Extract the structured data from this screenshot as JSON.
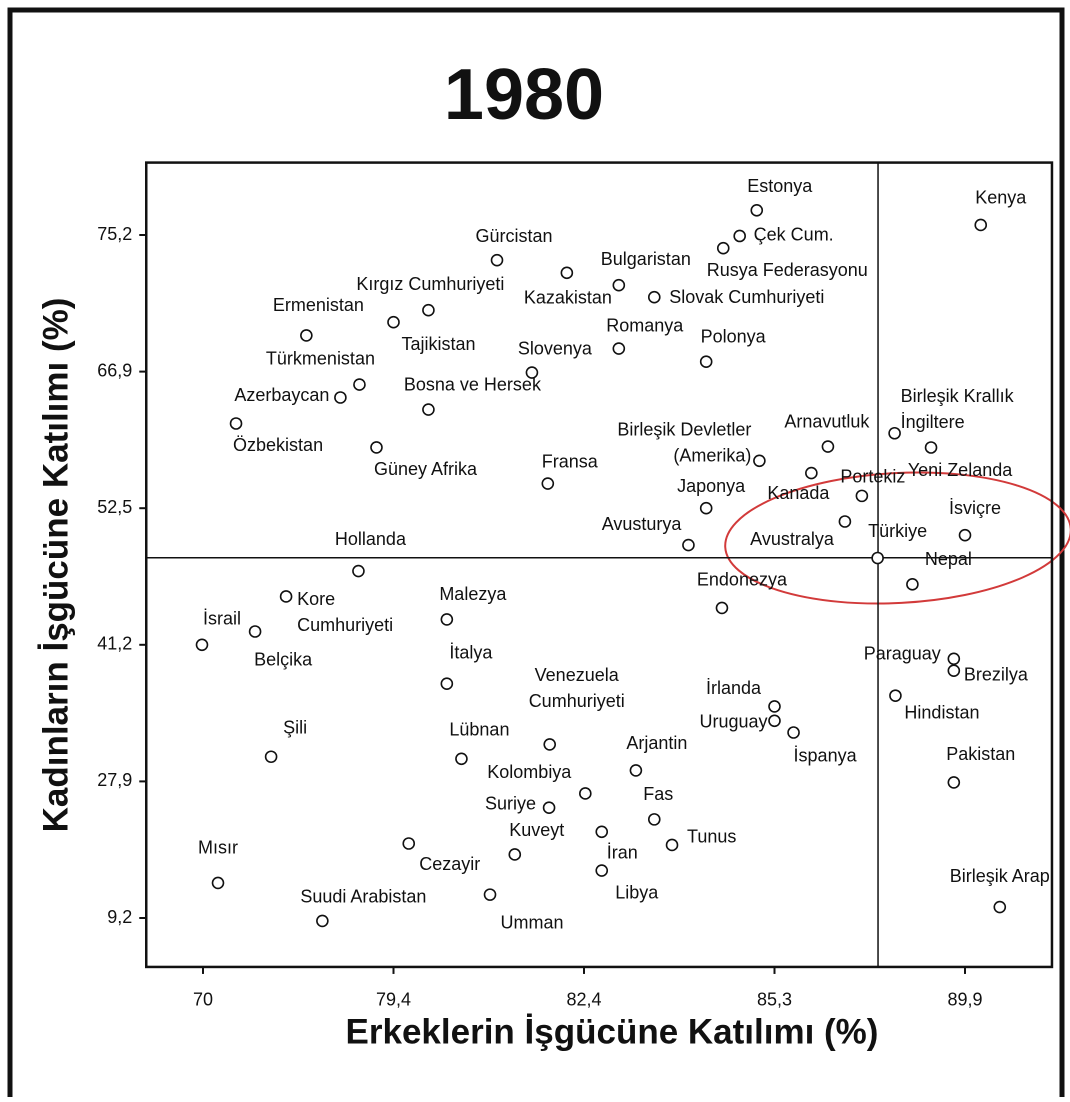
{
  "chart_data": {
    "type": "scatter",
    "title": "1980",
    "x_label": "Erkeklerin İşgücüne Katılımı (%)",
    "y_label": "Kadınların İşgücüne Katılımı (%)",
    "xscale": "piecewise",
    "yscale": "piecewise",
    "xlim": [
      67.2,
      92.0
    ],
    "ylim": [
      2.5,
      79.6
    ],
    "xticks": [
      70,
      {
        "value": 79.4,
        "label": "79,4"
      },
      {
        "value": 82.4,
        "label": "82,4"
      },
      {
        "value": 85.3,
        "label": "85,3"
      },
      {
        "value": 89.9,
        "label": "89,9"
      }
    ],
    "yticks": [
      {
        "value": 9.2,
        "label": "9,2"
      },
      {
        "value": 27.9,
        "label": "27,9"
      },
      {
        "value": 41.2,
        "label": "41,2"
      },
      {
        "value": 52.5,
        "label": "52,5"
      },
      {
        "value": 66.9,
        "label": "66,9"
      },
      {
        "value": 75.2,
        "label": "75,2"
      }
    ],
    "reference_lines": {
      "x": 87.8,
      "y": 48.4
    },
    "color": "#111111",
    "points": [
      {
        "label": "Estonya",
        "x": 85.03,
        "y": 76.7
      },
      {
        "label": "Çek Cum.",
        "x": 84.77,
        "y": 75.14
      },
      {
        "label": "Rusya Federasyonu",
        "x": 84.52,
        "y": 74.4
      },
      {
        "label": "Kenya",
        "x": 90.28,
        "y": 75.81
      },
      {
        "label": "Gürcistan",
        "x": 81.03,
        "y": 73.67
      },
      {
        "label": "Bulgaristan",
        "x": 82.93,
        "y": 72.15
      },
      {
        "label": "Kazakistan",
        "x": 82.13,
        "y": 72.9
      },
      {
        "label": "Slovak Cumhuriyeti",
        "x": 83.47,
        "y": 71.42
      },
      {
        "label": "Kırgız Cumhuriyeti",
        "x": 79.95,
        "y": 70.63
      },
      {
        "label": "Tajikistan",
        "x": 79.4,
        "y": 69.9
      },
      {
        "label": "Ermenistan",
        "x": 75.1,
        "y": 69.1
      },
      {
        "label": "Romanya",
        "x": 82.93,
        "y": 68.3
      },
      {
        "label": "Polonya",
        "x": 84.26,
        "y": 67.5
      },
      {
        "label": "Slovenya",
        "x": 81.58,
        "y": 66.8
      },
      {
        "label": "Türkmenistan",
        "x": 77.72,
        "y": 65.53
      },
      {
        "label": "Azerbaycan",
        "x": 76.78,
        "y": 64.17
      },
      {
        "label": "Bosna ve Hersek",
        "x": 79.95,
        "y": 62.9
      },
      {
        "label": "Özbekistan",
        "x": 71.63,
        "y": 61.43
      },
      {
        "label": "Güney Afrika",
        "x": 78.56,
        "y": 58.91
      },
      {
        "label": [
          "Birleşik Devletler",
          "(Amerika)"
        ],
        "x": 85.07,
        "y": 57.5
      },
      {
        "label": "Arnavutluk",
        "x": 86.59,
        "y": 59.0
      },
      {
        "label": [
          "Birleşik Krallık",
          "İngiltere"
        ],
        "x": 88.2,
        "y": 60.4
      },
      {
        "label": "Yeni Zelanda",
        "x": 89.08,
        "y": 58.9
      },
      {
        "label": "Kanada",
        "x": 86.19,
        "y": 56.2
      },
      {
        "label": "Portekiz",
        "x": 87.41,
        "y": 53.8
      },
      {
        "label": "Fransa",
        "x": 81.83,
        "y": 55.1
      },
      {
        "label": "Japonya",
        "x": 84.26,
        "y": 52.5
      },
      {
        "label": "Avustralya",
        "x": 87.0,
        "y": 51.4
      },
      {
        "label": "İsviçre",
        "x": 89.9,
        "y": 50.27
      },
      {
        "label": "Avusturya",
        "x": 83.99,
        "y": 49.45
      },
      {
        "label": "Türkiye",
        "x": 87.79,
        "y": 48.38
      },
      {
        "label": "Nepal",
        "x": 88.63,
        "y": 46.2
      },
      {
        "label": "Hollanda",
        "x": 77.67,
        "y": 47.3
      },
      {
        "label": "Endonezya",
        "x": 84.5,
        "y": 44.25
      },
      {
        "label": [
          "Kore",
          "Cumhuriyeti"
        ],
        "x": 74.1,
        "y": 45.2
      },
      {
        "label": "Malezya",
        "x": 80.24,
        "y": 43.3
      },
      {
        "label": "İsrail",
        "x": 69.95,
        "y": 41.2
      },
      {
        "label": "Belçika",
        "x": 72.57,
        "y": 42.3
      },
      {
        "label": "İtalya",
        "x": 80.24,
        "y": 37.41
      },
      {
        "label": "Paraguay",
        "x": 89.63,
        "y": 39.84
      },
      {
        "label": "Brezilya",
        "x": 89.63,
        "y": 38.68
      },
      {
        "label": "Hindistan",
        "x": 88.22,
        "y": 36.25
      },
      {
        "label": [
          "Venezuela",
          "Cumhuriyeti"
        ],
        "x": 81.86,
        "y": 31.5
      },
      {
        "label": "İrlanda",
        "x": 85.3,
        "y": 35.2
      },
      {
        "label": "Uruguay",
        "x": 85.3,
        "y": 33.8
      },
      {
        "label": "İspanya",
        "x": 85.76,
        "y": 32.66
      },
      {
        "label": "Şili",
        "x": 73.36,
        "y": 30.3
      },
      {
        "label": "Lübnan",
        "x": 80.47,
        "y": 30.1
      },
      {
        "label": "Arjantin",
        "x": 83.19,
        "y": 28.97
      },
      {
        "label": "Pakistan",
        "x": 89.63,
        "y": 27.76
      },
      {
        "label": "Kolombiya",
        "x": 82.42,
        "y": 26.25
      },
      {
        "label": "Suriye",
        "x": 81.85,
        "y": 24.3
      },
      {
        "label": "Fas",
        "x": 83.47,
        "y": 22.7
      },
      {
        "label": "İran",
        "x": 82.67,
        "y": 21.0
      },
      {
        "label": "Tunus",
        "x": 83.74,
        "y": 19.2
      },
      {
        "label": "Kuveyt",
        "x": 81.31,
        "y": 17.9
      },
      {
        "label": "Cezayir",
        "x": 79.64,
        "y": 19.4
      },
      {
        "label": "Libya",
        "x": 82.67,
        "y": 15.7
      },
      {
        "label": "Mısır",
        "x": 70.74,
        "y": 14.0
      },
      {
        "label": "Umman",
        "x": 80.92,
        "y": 12.4
      },
      {
        "label": "Suudi Arabistan",
        "x": 75.89,
        "y": 8.8
      },
      {
        "label": "Birleşik Arap",
        "x": 90.74,
        "y": 10.7
      }
    ]
  }
}
